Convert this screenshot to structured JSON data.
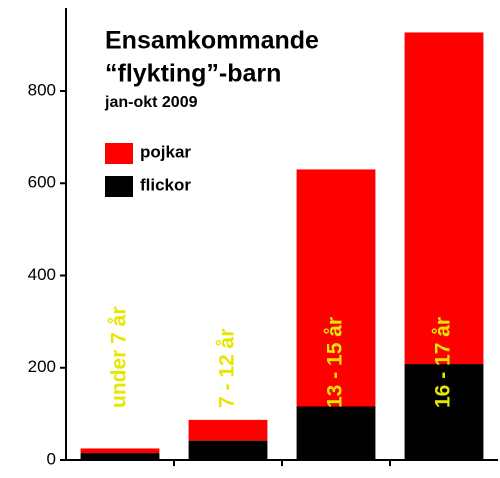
{
  "chart_data": {
    "type": "stacked_bar",
    "title": [
      "Ensamkommande",
      "“flykting”-barn"
    ],
    "subtitle": "jan-okt 2009",
    "categories": [
      "under 7 år",
      "7 - 12 år",
      "13 - 15 år",
      "16 - 17 år"
    ],
    "category_label_color": "#e6e600",
    "series": [
      {
        "name": "flickor",
        "color": "#000000",
        "values": [
          15,
          42,
          116,
          208
        ]
      },
      {
        "name": "pojkar",
        "color": "#ff0000",
        "values": [
          10,
          45,
          514,
          719
        ]
      }
    ],
    "ylim": [
      0,
      980
    ],
    "yticks": [
      0,
      200,
      400,
      600,
      800
    ],
    "legend": "upper left"
  }
}
